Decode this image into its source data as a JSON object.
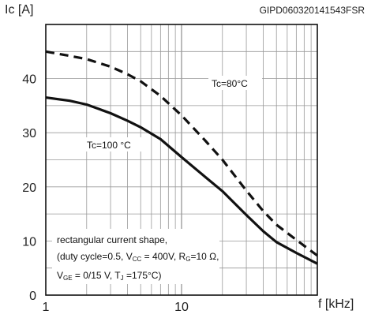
{
  "header": {
    "code": "GIPD060320141543FSR"
  },
  "chart_data": {
    "type": "line",
    "ylabel": "Ic [A]",
    "xlabel": "f [kHz]",
    "x_scale": "log",
    "xlim": [
      1,
      100
    ],
    "ylim": [
      0,
      50
    ],
    "grid": true,
    "x_ticks": [
      {
        "value": 1,
        "label": "1"
      },
      {
        "value": 10,
        "label": "10"
      }
    ],
    "y_ticks": [
      {
        "value": 0,
        "label": "0"
      },
      {
        "value": 10,
        "label": "10"
      },
      {
        "value": 20,
        "label": "20"
      },
      {
        "value": 30,
        "label": "30"
      },
      {
        "value": 40,
        "label": "40"
      }
    ],
    "series": [
      {
        "name": "Tc=80°C",
        "style": "dashed",
        "color": "#111111",
        "x": [
          1,
          1.5,
          2,
          3,
          4,
          5,
          7,
          10,
          15,
          20,
          30,
          40,
          50,
          70,
          100
        ],
        "y": [
          45,
          44.2,
          43.6,
          42.2,
          40.8,
          39.5,
          36.8,
          33.2,
          28.5,
          25,
          19.3,
          15.5,
          13,
          10.2,
          7.3
        ]
      },
      {
        "name": "Tc=100 °C",
        "style": "solid",
        "color": "#111111",
        "x": [
          1,
          1.5,
          2,
          3,
          4,
          5,
          7,
          10,
          15,
          20,
          30,
          40,
          50,
          70,
          100
        ],
        "y": [
          36.5,
          35.9,
          35.2,
          33.6,
          32.2,
          31,
          28.8,
          25.5,
          21.8,
          19.2,
          14.8,
          11.8,
          9.8,
          7.8,
          5.8
        ]
      }
    ],
    "annotations": {
      "curve80": "Tc=80°C",
      "curve100": "Tc=100 °C",
      "cond_line1": "rectangular current shape,",
      "cond_l2_a": "(duty cycle=0.5, V",
      "cond_l2_sub1": "CC",
      "cond_l2_b": " = 400V, R",
      "cond_l2_sub2": "G",
      "cond_l2_c": "=10 Ω,",
      "cond_l3_a": "V",
      "cond_l3_sub1": "GE",
      "cond_l3_b": " = 0/15 V, T",
      "cond_l3_sub2": "J",
      "cond_l3_c": " =175°C)"
    }
  }
}
